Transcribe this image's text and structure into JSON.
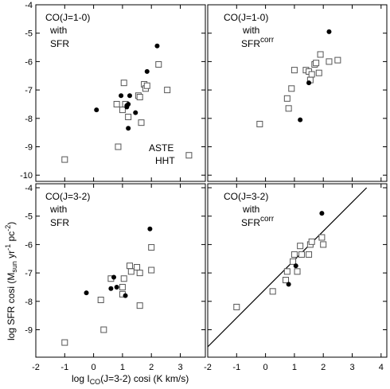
{
  "chart_data": {
    "type": "scatter",
    "xlabel": "log I",
    "xlabel_sub": "CO",
    "xlabel_rest": "(J=3-2) cosi  (K km/s)",
    "ylabel": "log SFR cosi  (M",
    "ylabel_sub": "sun",
    "ylabel_rest": " yr",
    "ylabel_sup1": "-1",
    "ylabel_rest2": " pc",
    "ylabel_sup2": "-2",
    "ylabel_end": ")",
    "xlim": [
      -2,
      4
    ],
    "ylim": [
      -10,
      -4
    ],
    "xticks": [
      "-2",
      "-1",
      "0",
      "1",
      "2",
      "3",
      "4"
    ],
    "yticks": [
      "-10",
      "-9",
      "-8",
      "-7",
      "-6",
      "-5",
      "-4"
    ],
    "legend": {
      "filled_label": "ASTE",
      "open_label": "HHT"
    },
    "panels": [
      {
        "label_line1": "CO(J=1-0)",
        "label_line2": "with",
        "label_line3": "SFR",
        "label_sup": "",
        "fit_line": null,
        "filled": [
          [
            0.1,
            -7.7
          ],
          [
            0.95,
            -7.2
          ],
          [
            1.15,
            -7.6
          ],
          [
            1.2,
            -7.5
          ],
          [
            1.15,
            -7.55
          ],
          [
            1.25,
            -7.2
          ],
          [
            1.45,
            -7.8
          ],
          [
            1.2,
            -8.35
          ],
          [
            1.85,
            -6.35
          ],
          [
            2.2,
            -5.45
          ]
        ],
        "open": [
          [
            -1.0,
            -9.45
          ],
          [
            0.8,
            -7.5
          ],
          [
            0.85,
            -9.0
          ],
          [
            1.05,
            -6.75
          ],
          [
            1.1,
            -7.5
          ],
          [
            1.2,
            -7.95
          ],
          [
            1.55,
            -7.2
          ],
          [
            1.6,
            -7.25
          ],
          [
            1.65,
            -8.15
          ],
          [
            1.75,
            -6.8
          ],
          [
            1.8,
            -6.95
          ],
          [
            1.85,
            -6.85
          ],
          [
            2.25,
            -6.1
          ],
          [
            2.55,
            -7.0
          ],
          [
            3.3,
            -9.3
          ],
          [
            1.0,
            -7.7
          ]
        ]
      },
      {
        "label_line1": "CO(J=1-0)",
        "label_line2": "with",
        "label_line3": "SFR",
        "label_sup": "corr",
        "fit_line": null,
        "filled": [
          [
            1.2,
            -8.05
          ],
          [
            1.5,
            -6.75
          ],
          [
            2.2,
            -4.95
          ]
        ],
        "open": [
          [
            -0.2,
            -8.2
          ],
          [
            0.75,
            -7.3
          ],
          [
            0.8,
            -7.65
          ],
          [
            0.9,
            -6.95
          ],
          [
            1.0,
            -6.3
          ],
          [
            1.4,
            -6.3
          ],
          [
            1.5,
            -6.35
          ],
          [
            1.55,
            -6.65
          ],
          [
            1.6,
            -6.45
          ],
          [
            1.7,
            -6.1
          ],
          [
            1.75,
            -6.05
          ],
          [
            1.85,
            -6.4
          ],
          [
            1.9,
            -5.75
          ],
          [
            2.2,
            -6.0
          ],
          [
            2.5,
            -5.95
          ]
        ]
      },
      {
        "label_line1": "CO(J=3-2)",
        "label_line2": "with",
        "label_line3": "SFR",
        "label_sup": "",
        "fit_line": null,
        "filled": [
          [
            -0.25,
            -7.7
          ],
          [
            0.6,
            -7.55
          ],
          [
            0.7,
            -7.15
          ],
          [
            0.8,
            -7.5
          ],
          [
            1.1,
            -7.8
          ],
          [
            1.95,
            -5.45
          ]
        ],
        "open": [
          [
            -1.0,
            -9.45
          ],
          [
            0.25,
            -7.95
          ],
          [
            0.35,
            -9.0
          ],
          [
            0.6,
            -7.2
          ],
          [
            1.0,
            -7.5
          ],
          [
            1.0,
            -7.75
          ],
          [
            1.05,
            -7.2
          ],
          [
            1.25,
            -6.75
          ],
          [
            1.3,
            -6.95
          ],
          [
            1.5,
            -6.8
          ],
          [
            1.6,
            -7.0
          ],
          [
            1.6,
            -8.15
          ],
          [
            2.0,
            -6.1
          ],
          [
            2.0,
            -6.9
          ]
        ]
      },
      {
        "label_line1": "CO(J=3-2)",
        "label_line2": "with",
        "label_line3": "SFR",
        "label_sup": "corr",
        "fit_line": [
          [
            -2.0,
            -9.6
          ],
          [
            3.5,
            -4.0
          ]
        ],
        "filled": [
          [
            0.8,
            -7.4
          ],
          [
            1.05,
            -6.75
          ],
          [
            1.95,
            -4.9
          ]
        ],
        "open": [
          [
            -1.0,
            -8.2
          ],
          [
            0.25,
            -7.65
          ],
          [
            0.7,
            -7.25
          ],
          [
            0.75,
            -6.95
          ],
          [
            0.95,
            -6.6
          ],
          [
            1.0,
            -6.35
          ],
          [
            1.2,
            -6.05
          ],
          [
            1.25,
            -6.35
          ],
          [
            1.5,
            -6.35
          ],
          [
            1.55,
            -6.0
          ],
          [
            1.6,
            -5.9
          ],
          [
            1.95,
            -5.75
          ],
          [
            2.0,
            -6.0
          ],
          [
            1.1,
            -6.95
          ]
        ]
      }
    ]
  }
}
